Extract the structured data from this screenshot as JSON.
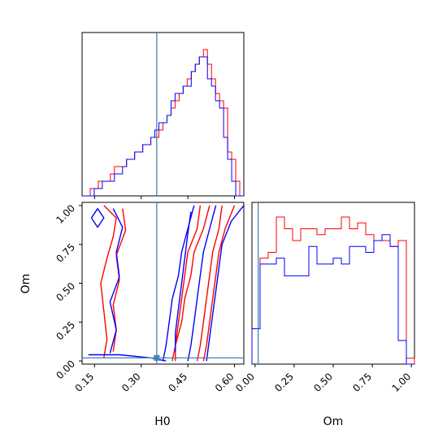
{
  "chart_data": [
    {
      "panel": "H0 marginal",
      "type": "histogram",
      "x": "H0",
      "xlim": [
        0.11,
        0.63
      ],
      "truth": 0.35,
      "colors": {
        "red": "#ff0000",
        "blue": "#0000ff",
        "truth": "#4682b4"
      },
      "bins": [
        0.11,
        0.123,
        0.136,
        0.149,
        0.162,
        0.175,
        0.188,
        0.201,
        0.214,
        0.227,
        0.24,
        0.253,
        0.266,
        0.279,
        0.292,
        0.305,
        0.318,
        0.331,
        0.344,
        0.357,
        0.37,
        0.383,
        0.396,
        0.409,
        0.422,
        0.435,
        0.448,
        0.461,
        0.474,
        0.487,
        0.5,
        0.513,
        0.526,
        0.539,
        0.552,
        0.565,
        0.578,
        0.591,
        0.604,
        0.617,
        0.63
      ],
      "series": [
        {
          "color": "red",
          "counts": [
            0,
            0,
            1,
            1,
            2,
            2,
            2,
            3,
            4,
            4,
            4,
            5,
            5,
            6,
            6,
            7,
            7,
            8,
            8,
            9,
            10,
            11,
            12,
            13,
            14,
            15,
            16,
            17,
            18,
            19,
            20,
            18,
            16,
            14,
            13,
            12,
            6,
            5,
            2,
            0
          ]
        },
        {
          "color": "blue",
          "counts": [
            0,
            0,
            0,
            1,
            1,
            2,
            2,
            2,
            3,
            3,
            4,
            5,
            5,
            6,
            6,
            7,
            7,
            8,
            9,
            10,
            10,
            11,
            13,
            14,
            14,
            15,
            15,
            17,
            18,
            19,
            19,
            16,
            15,
            13,
            12,
            8,
            5,
            2,
            0,
            0
          ]
        }
      ]
    },
    {
      "panel": "H0 vs Om",
      "type": "contour",
      "x": "H0",
      "y": "Om",
      "xlim": [
        0.11,
        0.63
      ],
      "ylim": [
        -0.02,
        1.02
      ],
      "xticks": [
        "0.15",
        "0.30",
        "0.45",
        "0.60"
      ],
      "yticks": [
        "0.00",
        "0.25",
        "0.50",
        "0.75",
        "1.00"
      ],
      "truth": {
        "H0": 0.35,
        "Om": 0.02
      },
      "series": [
        {
          "color": "red",
          "level": "outer",
          "paths": [
            [
              [
                0.18,
                1.0
              ],
              [
                0.22,
                0.92
              ],
              [
                0.21,
                0.8
              ],
              [
                0.19,
                0.66
              ],
              [
                0.17,
                0.5
              ],
              [
                0.18,
                0.32
              ],
              [
                0.19,
                0.14
              ],
              [
                0.18,
                0.02
              ]
            ],
            [
              [
                0.24,
                0.98
              ],
              [
                0.25,
                0.84
              ],
              [
                0.22,
                0.68
              ],
              [
                0.23,
                0.52
              ],
              [
                0.21,
                0.36
              ],
              [
                0.22,
                0.2
              ],
              [
                0.21,
                0.06
              ]
            ],
            [
              [
                0.52,
                1.0
              ],
              [
                0.5,
                0.85
              ],
              [
                0.47,
                0.7
              ],
              [
                0.46,
                0.55
              ],
              [
                0.44,
                0.4
              ],
              [
                0.43,
                0.25
              ],
              [
                0.41,
                0.1
              ],
              [
                0.4,
                0.0
              ]
            ],
            [
              [
                0.6,
                1.0
              ],
              [
                0.57,
                0.85
              ],
              [
                0.55,
                0.7
              ],
              [
                0.54,
                0.55
              ],
              [
                0.53,
                0.4
              ],
              [
                0.52,
                0.25
              ],
              [
                0.51,
                0.1
              ],
              [
                0.5,
                0.0
              ]
            ]
          ]
        },
        {
          "color": "red",
          "level": "inner",
          "paths": [
            [
              [
                0.49,
                1.0
              ],
              [
                0.48,
                0.85
              ],
              [
                0.45,
                0.7
              ],
              [
                0.44,
                0.55
              ],
              [
                0.43,
                0.4
              ],
              [
                0.42,
                0.25
              ],
              [
                0.41,
                0.1
              ],
              [
                0.41,
                0.0
              ]
            ],
            [
              [
                0.56,
                1.0
              ],
              [
                0.55,
                0.85
              ],
              [
                0.53,
                0.7
              ],
              [
                0.52,
                0.55
              ],
              [
                0.51,
                0.4
              ],
              [
                0.5,
                0.25
              ],
              [
                0.49,
                0.1
              ],
              [
                0.48,
                0.0
              ]
            ]
          ]
        },
        {
          "color": "blue",
          "level": "outer",
          "paths": [
            [
              [
                0.13,
                0.04
              ],
              [
                0.23,
                0.04
              ],
              [
                0.33,
                0.02
              ],
              [
                0.38,
                0.0
              ]
            ],
            [
              [
                0.14,
                0.92
              ],
              [
                0.16,
                0.86
              ],
              [
                0.18,
                0.92
              ],
              [
                0.16,
                0.98
              ],
              [
                0.14,
                0.92
              ]
            ],
            [
              [
                0.21,
                0.98
              ],
              [
                0.24,
                0.86
              ],
              [
                0.22,
                0.7
              ],
              [
                0.23,
                0.54
              ],
              [
                0.2,
                0.38
              ],
              [
                0.22,
                0.2
              ],
              [
                0.2,
                0.05
              ]
            ],
            [
              [
                0.47,
                1.0
              ],
              [
                0.45,
                0.85
              ],
              [
                0.43,
                0.7
              ],
              [
                0.42,
                0.55
              ],
              [
                0.4,
                0.4
              ],
              [
                0.39,
                0.25
              ],
              [
                0.38,
                0.1
              ],
              [
                0.37,
                0.0
              ]
            ],
            [
              [
                0.63,
                1.0
              ],
              [
                0.59,
                0.9
              ],
              [
                0.56,
                0.75
              ],
              [
                0.55,
                0.6
              ],
              [
                0.54,
                0.45
              ],
              [
                0.53,
                0.3
              ],
              [
                0.52,
                0.15
              ],
              [
                0.51,
                0.0
              ]
            ]
          ]
        },
        {
          "color": "blue",
          "level": "inner",
          "paths": [
            [
              [
                0.46,
                0.96
              ],
              [
                0.45,
                0.82
              ],
              [
                0.44,
                0.66
              ],
              [
                0.43,
                0.5
              ],
              [
                0.42,
                0.34
              ],
              [
                0.41,
                0.18
              ],
              [
                0.41,
                0.06
              ]
            ],
            [
              [
                0.54,
                1.0
              ],
              [
                0.52,
                0.85
              ],
              [
                0.5,
                0.7
              ],
              [
                0.49,
                0.55
              ],
              [
                0.48,
                0.4
              ],
              [
                0.47,
                0.25
              ],
              [
                0.46,
                0.1
              ],
              [
                0.45,
                0.0
              ]
            ]
          ]
        }
      ]
    },
    {
      "panel": "Om marginal",
      "type": "histogram",
      "x": "Om",
      "xlim": [
        -0.02,
        1.02
      ],
      "xticks": [
        "0.00",
        "0.25",
        "0.50",
        "0.75",
        "1.00"
      ],
      "truth": 0.02,
      "bins": [
        -0.02,
        0.032,
        0.084,
        0.136,
        0.188,
        0.24,
        0.292,
        0.344,
        0.396,
        0.448,
        0.5,
        0.552,
        0.604,
        0.656,
        0.708,
        0.76,
        0.812,
        0.864,
        0.916,
        0.968,
        1.02
      ],
      "series": [
        {
          "color": "red",
          "counts": [
            6,
            18,
            19,
            25,
            23,
            21,
            23,
            23,
            22,
            23,
            23,
            25,
            23,
            24,
            22,
            21,
            21,
            20,
            21,
            1
          ]
        },
        {
          "color": "blue",
          "counts": [
            6,
            17,
            17,
            18,
            15,
            15,
            15,
            20,
            17,
            17,
            18,
            17,
            20,
            20,
            19,
            21,
            22,
            20,
            4,
            0
          ]
        }
      ]
    }
  ],
  "labels": {
    "x_h0": "H0",
    "y_om": "Om",
    "x_om": "Om"
  }
}
